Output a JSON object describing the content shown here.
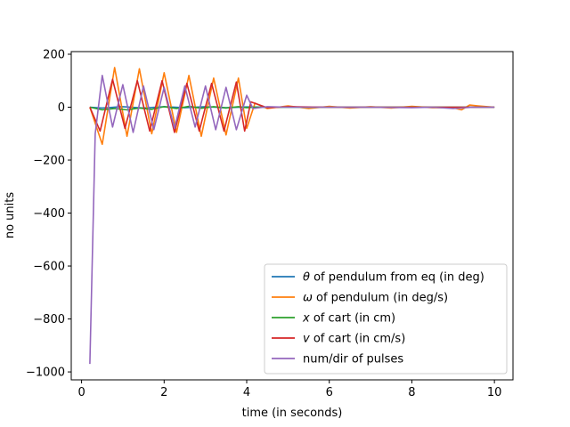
{
  "chart_data": {
    "type": "line",
    "title": "",
    "xlabel": "time (in seconds)",
    "ylabel": "no units",
    "xlim": [
      -0.25,
      10.45
    ],
    "ylim": [
      -1030,
      210
    ],
    "xticks": [
      0,
      2,
      4,
      6,
      8,
      10
    ],
    "yticks": [
      -1000,
      -800,
      -600,
      -400,
      -200,
      0,
      200
    ],
    "grid": false,
    "legend_position": "lower-right",
    "series": [
      {
        "name_symbol": "θ",
        "name_rest": " of pendulum from eq (in deg)",
        "color": "#1f77b4",
        "x": [
          0.2,
          0.5,
          1.0,
          1.5,
          2.0,
          2.5,
          3.0,
          3.5,
          4.0,
          4.5,
          5.0,
          6.0,
          7.0,
          8.0,
          9.0,
          10.0
        ],
        "values": [
          0,
          -3,
          2,
          -3,
          2,
          -2,
          2,
          -2,
          1,
          0,
          0,
          0,
          0,
          0,
          0,
          0
        ]
      },
      {
        "name_symbol": "ω",
        "name_rest": " of pendulum (in deg/s)",
        "color": "#ff7f0e",
        "x": [
          0.2,
          0.5,
          0.8,
          1.1,
          1.4,
          1.7,
          2.0,
          2.3,
          2.6,
          2.9,
          3.2,
          3.5,
          3.8,
          4.0,
          4.2,
          4.5,
          5.0,
          5.5,
          6.0,
          6.5,
          7.0,
          7.5,
          8.0,
          8.5,
          9.0,
          9.2,
          9.4,
          9.6,
          10.0
        ],
        "values": [
          0,
          -140,
          150,
          -110,
          145,
          -100,
          130,
          -95,
          120,
          -110,
          110,
          -105,
          110,
          -80,
          15,
          -5,
          5,
          -5,
          3,
          -3,
          2,
          -3,
          3,
          -2,
          -2,
          -10,
          8,
          5,
          0
        ]
      },
      {
        "name_symbol": "x",
        "name_rest": " of cart (in cm)",
        "color": "#2ca02c",
        "x": [
          0.2,
          0.5,
          0.8,
          1.1,
          1.4,
          1.7,
          2.0,
          2.3,
          2.6,
          2.9,
          3.2,
          3.5,
          3.8,
          4.0,
          4.2,
          4.5,
          5.0,
          6.0,
          7.0,
          8.0,
          9.0,
          10.0
        ],
        "values": [
          0,
          -10,
          -5,
          -10,
          -3,
          -8,
          2,
          -5,
          3,
          -4,
          2,
          -3,
          2,
          -2,
          0,
          0,
          0,
          0,
          0,
          0,
          0,
          0
        ]
      },
      {
        "name_symbol": "v",
        "name_rest": " of cart  (in cm/s)",
        "color": "#d62728",
        "x": [
          0.2,
          0.45,
          0.75,
          1.05,
          1.35,
          1.65,
          1.95,
          2.25,
          2.55,
          2.85,
          3.15,
          3.45,
          3.75,
          3.95,
          4.1,
          4.5,
          5.0,
          6.0,
          7.0,
          8.0,
          9.0,
          10.0
        ],
        "values": [
          0,
          -90,
          105,
          -80,
          100,
          -90,
          100,
          -95,
          90,
          -90,
          90,
          -90,
          95,
          -90,
          20,
          -2,
          2,
          0,
          0,
          0,
          0,
          0
        ]
      },
      {
        "name_symbol": "",
        "name_rest": "num/dir of pulses",
        "color": "#9467bd",
        "x": [
          0.2,
          0.33,
          0.5,
          0.75,
          1.0,
          1.25,
          1.5,
          1.75,
          2.0,
          2.25,
          2.5,
          2.75,
          3.0,
          3.25,
          3.5,
          3.75,
          4.0,
          4.15,
          4.5,
          5.0,
          6.0,
          7.0,
          8.0,
          8.5,
          9.0,
          9.5,
          10.0
        ],
        "values": [
          -970,
          -100,
          120,
          -75,
          85,
          -95,
          80,
          -85,
          75,
          -80,
          80,
          -75,
          80,
          -85,
          75,
          -85,
          45,
          -5,
          2,
          0,
          0,
          0,
          -2,
          0,
          -5,
          0,
          0
        ]
      }
    ]
  }
}
